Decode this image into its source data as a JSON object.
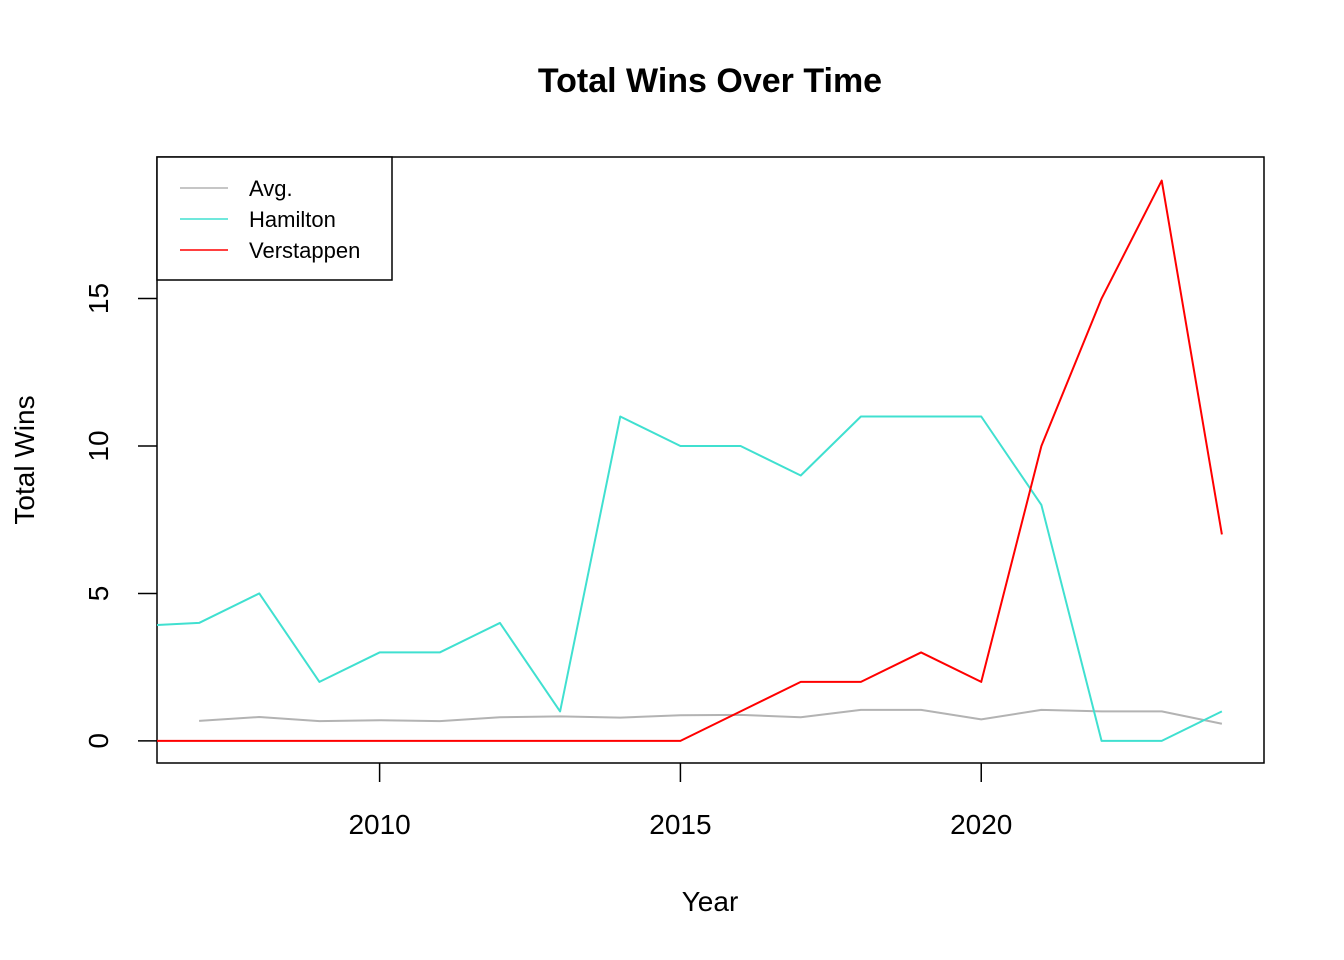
{
  "chart_data": {
    "type": "line",
    "title": "Total Wins Over Time",
    "xlabel": "Year",
    "ylabel": "Total Wins",
    "xlim": [
      2006.3,
      2024.7
    ],
    "ylim": [
      -0.75,
      19.8
    ],
    "xticks": [
      2010,
      2015,
      2020
    ],
    "yticks": [
      0,
      5,
      10,
      15
    ],
    "grid": false,
    "legend_position": "top-left",
    "x": [
      2006,
      2007,
      2008,
      2009,
      2010,
      2011,
      2012,
      2013,
      2014,
      2015,
      2016,
      2017,
      2018,
      2019,
      2020,
      2021,
      2022,
      2023,
      2024
    ],
    "series": [
      {
        "name": "Avg.",
        "color": "#B3B3B3",
        "values": [
          null,
          0.68,
          0.81,
          0.67,
          0.7,
          0.67,
          0.8,
          0.83,
          0.79,
          0.87,
          0.88,
          0.8,
          1.05,
          1.05,
          0.73,
          1.05,
          1.0,
          1.0,
          0.58
        ]
      },
      {
        "name": "Hamilton",
        "color": "#40E0D0",
        "values": [
          3.9,
          4,
          5,
          2,
          3,
          3,
          4,
          1,
          11,
          10,
          10,
          9,
          11,
          11,
          11,
          8,
          0,
          0,
          1
        ]
      },
      {
        "name": "Verstappen",
        "color": "#FF0000",
        "values": [
          0,
          0,
          0,
          0,
          0,
          0,
          0,
          0,
          0,
          0,
          1,
          2,
          2,
          3,
          2,
          10,
          15,
          19,
          7
        ]
      }
    ]
  }
}
